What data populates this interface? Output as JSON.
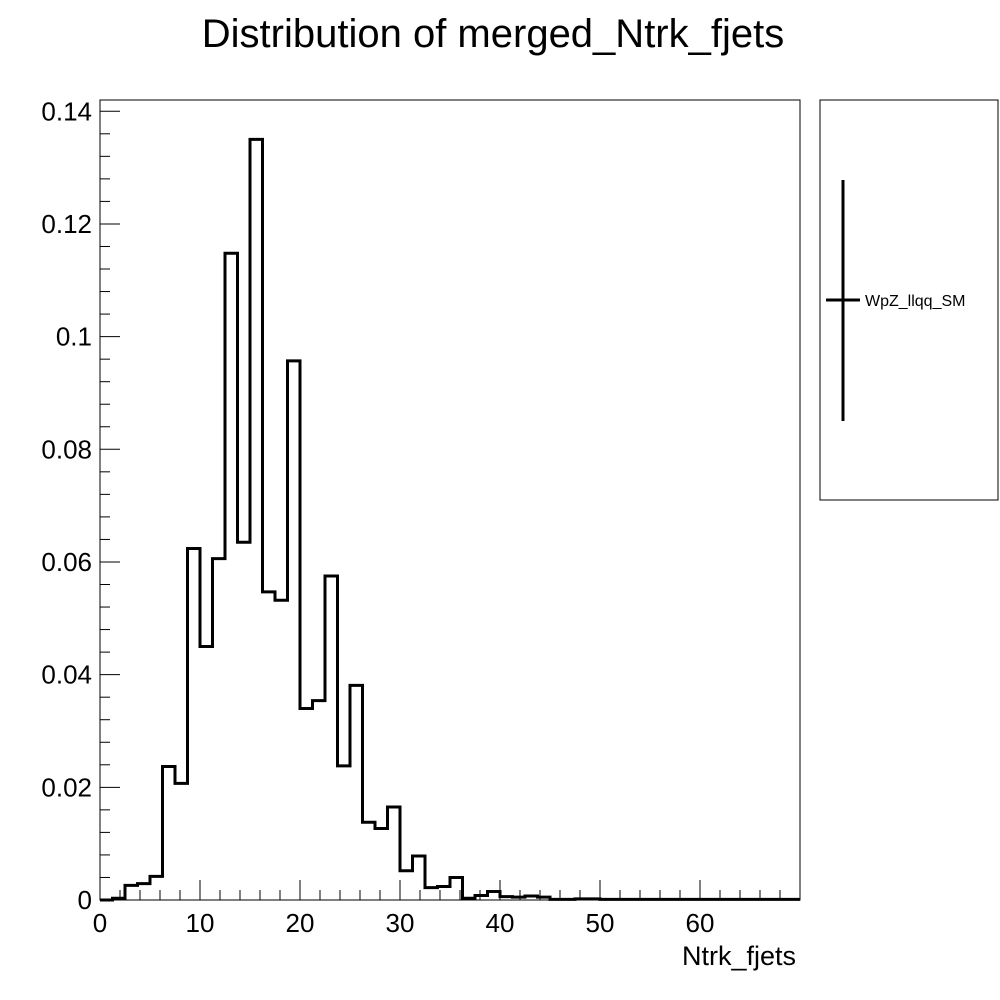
{
  "chart_data": {
    "type": "histogram",
    "title": "Distribution of merged_Ntrk_fjets",
    "xlabel": "Ntrk_fjets",
    "ylabel": "",
    "xlim": [
      0,
      70
    ],
    "ylim": [
      0,
      0.142
    ],
    "x_ticks": [
      0,
      10,
      20,
      30,
      40,
      50,
      60
    ],
    "x_tick_labels": [
      "0",
      "10",
      "20",
      "30",
      "40",
      "50",
      "60"
    ],
    "y_ticks": [
      0,
      0.02,
      0.04,
      0.06,
      0.08,
      0.1,
      0.12,
      0.14
    ],
    "y_tick_labels": [
      "0",
      "0.02",
      "0.04",
      "0.06",
      "0.08",
      "0.1",
      "0.12",
      "0.14"
    ],
    "grid": false,
    "legend_position": "right",
    "bin_width": 1.25,
    "series": [
      {
        "name": "WpZ_llqq_SM",
        "color": "#000000",
        "bin_edges_start": 0,
        "values": [
          0,
          0.0003,
          0.0026,
          0.0029,
          0.0042,
          0.0237,
          0.0207,
          0.0624,
          0.045,
          0.0606,
          0.1148,
          0.0635,
          0.135,
          0.0547,
          0.0532,
          0.0957,
          0.034,
          0.0354,
          0.0575,
          0.0238,
          0.0381,
          0.0138,
          0.0127,
          0.0165,
          0.0052,
          0.0078,
          0.0022,
          0.0024,
          0.004,
          0.0003,
          0.0008,
          0.0015,
          0.0006,
          0.0005,
          0.0007,
          0.0005,
          0.0001,
          0.0001,
          0.0002,
          0.0002,
          0.0001,
          0.0001,
          0.0001,
          0.0001,
          0.0001,
          0.0001,
          0.0001,
          0.0001,
          0.0001,
          0.0001,
          0.0001,
          0.0001,
          0.0001,
          0.0001,
          0.0001,
          0.0001
        ]
      }
    ]
  }
}
